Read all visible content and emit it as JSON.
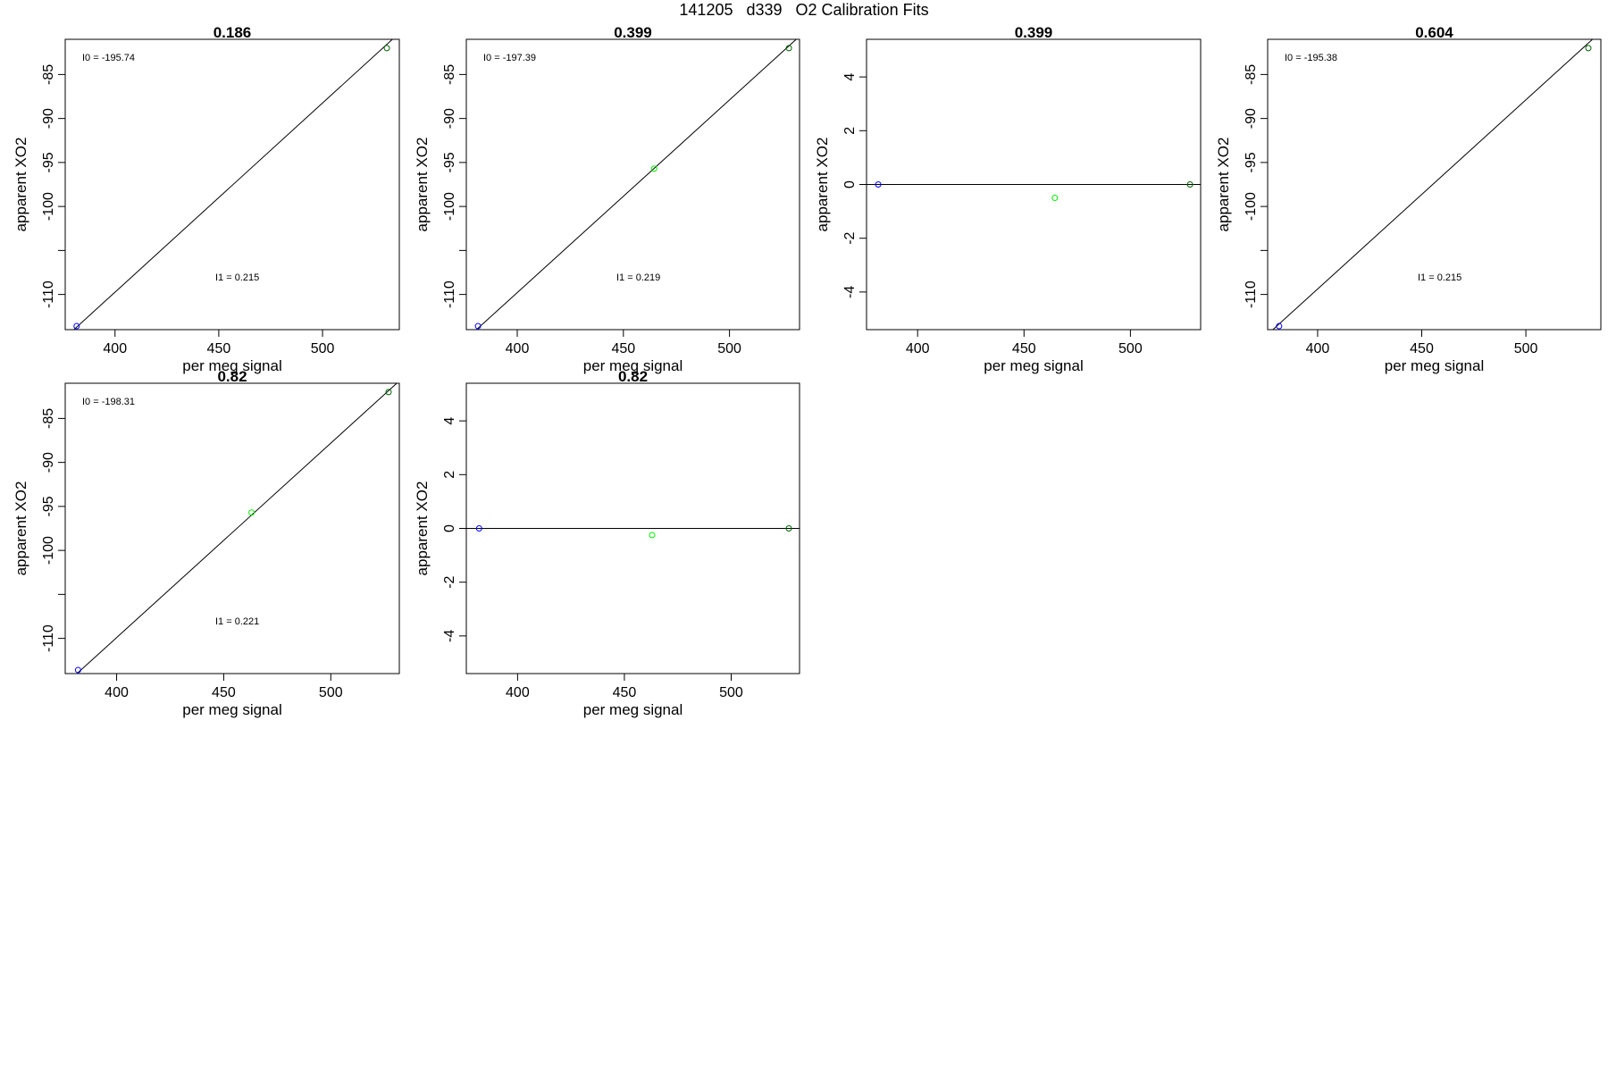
{
  "page": {
    "title": "141205   d339   O2 Calibration Fits"
  },
  "colors": {
    "blue_point": "#0000ff",
    "green_point": "#00ee00",
    "dark_green_point": "#006400",
    "line": "#000000"
  },
  "chart_data": [
    {
      "type": "scatter",
      "title": "0.186",
      "xlabel": "per meg signal",
      "ylabel": "apparent XO2",
      "xlim": [
        376,
        537
      ],
      "ylim": [
        -114,
        -81
      ],
      "xticks": [
        400,
        450,
        500
      ],
      "yticks": [
        -85,
        -90,
        -95,
        -100,
        -110
      ],
      "points": [
        {
          "x": 381.5,
          "y": -113.6,
          "color": "blue"
        },
        {
          "x": 531,
          "y": -82.0,
          "color": "dark_green"
        }
      ],
      "fit_line": {
        "intercept": -195.74,
        "slope": 0.215
      },
      "annotations": [
        "I0 =  -195.74",
        "I1 =  0.215"
      ]
    },
    {
      "type": "scatter",
      "title": "0.399",
      "xlabel": "per meg signal",
      "ylabel": "apparent XO2",
      "xlim": [
        376,
        533
      ],
      "ylim": [
        -114,
        -81
      ],
      "xticks": [
        400,
        450,
        500
      ],
      "yticks": [
        -85,
        -90,
        -95,
        -100,
        -110
      ],
      "points": [
        {
          "x": 381.5,
          "y": -113.6,
          "color": "blue"
        },
        {
          "x": 464.5,
          "y": -95.7,
          "color": "green"
        },
        {
          "x": 528,
          "y": -82.0,
          "color": "dark_green"
        }
      ],
      "fit_line": {
        "intercept": -197.39,
        "slope": 0.219
      },
      "annotations": [
        "I0 =  -197.39",
        "I1 =  0.219"
      ]
    },
    {
      "type": "scatter",
      "title": "0.399",
      "xlabel": "per meg signal",
      "ylabel": "apparent XO2",
      "xlim": [
        376,
        533
      ],
      "ylim": [
        -5.4,
        5.4
      ],
      "xticks": [
        400,
        450,
        500
      ],
      "yticks": [
        4,
        2,
        0,
        -2,
        -4
      ],
      "points": [
        {
          "x": 381.5,
          "y": 0.0,
          "color": "blue"
        },
        {
          "x": 464.5,
          "y": -0.5,
          "color": "green"
        },
        {
          "x": 528,
          "y": 0.0,
          "color": "dark_green"
        }
      ],
      "hline": 0,
      "annotations": []
    },
    {
      "type": "scatter",
      "title": "0.604",
      "xlabel": "per meg signal",
      "ylabel": "apparent XO2",
      "xlim": [
        376,
        536
      ],
      "ylim": [
        -114,
        -81
      ],
      "xticks": [
        400,
        450,
        500
      ],
      "yticks": [
        -85,
        -90,
        -95,
        -100,
        -110
      ],
      "points": [
        {
          "x": 381.5,
          "y": -113.6,
          "color": "blue"
        },
        {
          "x": 530,
          "y": -82.0,
          "color": "dark_green"
        }
      ],
      "fit_line": {
        "intercept": -195.38,
        "slope": 0.215
      },
      "annotations": [
        "I0 =  -195.38",
        "I1 =  0.215"
      ]
    },
    {
      "type": "scatter",
      "title": "0.82",
      "xlabel": "per meg signal",
      "ylabel": "apparent XO2",
      "xlim": [
        376,
        532
      ],
      "ylim": [
        -114,
        -81
      ],
      "xticks": [
        400,
        450,
        500
      ],
      "yticks": [
        -85,
        -90,
        -95,
        -100,
        -110
      ],
      "points": [
        {
          "x": 382,
          "y": -113.6,
          "color": "blue"
        },
        {
          "x": 463,
          "y": -95.7,
          "color": "green"
        },
        {
          "x": 527,
          "y": -82.0,
          "color": "dark_green"
        }
      ],
      "fit_line": {
        "intercept": -198.31,
        "slope": 0.221
      },
      "annotations": [
        "I0 =  -198.31",
        "I1 =  0.221"
      ]
    },
    {
      "type": "scatter",
      "title": "0.82",
      "xlabel": "per meg signal",
      "ylabel": "apparent XO2",
      "xlim": [
        376,
        532
      ],
      "ylim": [
        -5.4,
        5.4
      ],
      "xticks": [
        400,
        450,
        500
      ],
      "yticks": [
        4,
        2,
        0,
        -2,
        -4
      ],
      "points": [
        {
          "x": 382,
          "y": 0.0,
          "color": "blue"
        },
        {
          "x": 463,
          "y": -0.25,
          "color": "green"
        },
        {
          "x": 527,
          "y": 0.0,
          "color": "dark_green"
        }
      ],
      "hline": 0,
      "annotations": []
    }
  ]
}
